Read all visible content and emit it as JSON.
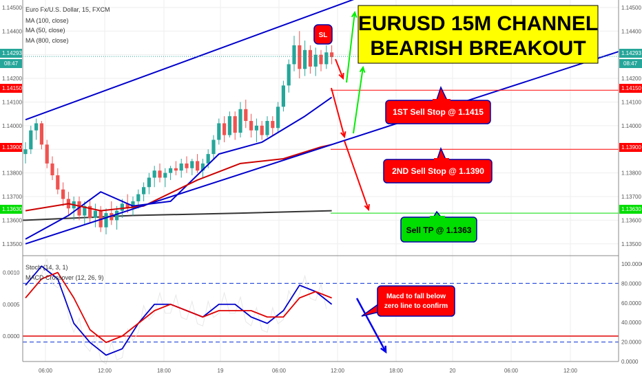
{
  "header": {
    "symbol": "Euro Fx/U.S. Dollar, 15, FXCM",
    "indicators": [
      "MA (100, close)",
      "MA (50, close)",
      "MA (800, close)"
    ]
  },
  "headline": {
    "line1": "EURUSD 15M CHANNEL",
    "line2": "BEARISH BREAKOUT"
  },
  "sl_label": "SL",
  "callouts": {
    "sell_stop_1": "1ST Sell Stop @ 1.1415",
    "sell_stop_2": "2ND Sell Stop @ 1.1390",
    "take_profit": "Sell TP @ 1.1363",
    "macd_note_1": "Macd to fall below",
    "macd_note_2": "zero line to confirm"
  },
  "price_boxes": {
    "current": "1.14293",
    "countdown": "08:47",
    "sell1": "1.14150",
    "sell2": "1.13900",
    "tp": "1.13630"
  },
  "lower_pane": {
    "stoch_label": "Stoch (14, 3, 1)",
    "macd_label": "MACD Crossover (12, 26, 9)"
  },
  "colors": {
    "bull": "#26a69a",
    "bear": "#ef5350",
    "channel": "#0000cc",
    "ma100": "#0000cc",
    "ma50": "#cc0000",
    "ma800": "#333333",
    "callout_red": "#ff0000",
    "callout_green": "#00cc00",
    "headline_bg": "#ffff00",
    "macd": "#0000cc",
    "signal": "#e00000"
  },
  "chart_data": [
    {
      "type": "candlestick",
      "ylim": [
        1.1345,
        1.1452
      ],
      "y_ticks": [
        "1.14500",
        "1.14400",
        "1.14300",
        "1.14200",
        "1.14100",
        "1.14000",
        "1.13900",
        "1.13800",
        "1.13700",
        "1.13600",
        "1.13500"
      ],
      "x_ticks": [
        "06:00",
        "12:00",
        "18:00",
        "19",
        "06:00",
        "12:00",
        "18:00",
        "20",
        "06:00",
        "12:00"
      ],
      "candles": [
        {
          "o": 1.1388,
          "h": 1.1393,
          "l": 1.1384,
          "c": 1.139
        },
        {
          "o": 1.139,
          "h": 1.14,
          "l": 1.1388,
          "c": 1.1398
        },
        {
          "o": 1.1398,
          "h": 1.1403,
          "l": 1.1394,
          "c": 1.1401
        },
        {
          "o": 1.1401,
          "h": 1.1402,
          "l": 1.139,
          "c": 1.1392
        },
        {
          "o": 1.1392,
          "h": 1.1394,
          "l": 1.1382,
          "c": 1.1384
        },
        {
          "o": 1.1384,
          "h": 1.1387,
          "l": 1.1377,
          "c": 1.1379
        },
        {
          "o": 1.1379,
          "h": 1.1382,
          "l": 1.1371,
          "c": 1.1373
        },
        {
          "o": 1.1373,
          "h": 1.1376,
          "l": 1.1366,
          "c": 1.1369
        },
        {
          "o": 1.1369,
          "h": 1.1372,
          "l": 1.1362,
          "c": 1.1365
        },
        {
          "o": 1.1365,
          "h": 1.137,
          "l": 1.136,
          "c": 1.1368
        },
        {
          "o": 1.1368,
          "h": 1.137,
          "l": 1.136,
          "c": 1.1362
        },
        {
          "o": 1.1362,
          "h": 1.1368,
          "l": 1.1358,
          "c": 1.1366
        },
        {
          "o": 1.1366,
          "h": 1.1369,
          "l": 1.1359,
          "c": 1.1361
        },
        {
          "o": 1.1361,
          "h": 1.1367,
          "l": 1.1357,
          "c": 1.1364
        },
        {
          "o": 1.1364,
          "h": 1.1366,
          "l": 1.1355,
          "c": 1.1357
        },
        {
          "o": 1.1357,
          "h": 1.1365,
          "l": 1.1354,
          "c": 1.1363
        },
        {
          "o": 1.1363,
          "h": 1.1368,
          "l": 1.1358,
          "c": 1.136
        },
        {
          "o": 1.136,
          "h": 1.1366,
          "l": 1.1356,
          "c": 1.1364
        },
        {
          "o": 1.1364,
          "h": 1.1369,
          "l": 1.1361,
          "c": 1.1367
        },
        {
          "o": 1.1367,
          "h": 1.1371,
          "l": 1.1363,
          "c": 1.1365
        },
        {
          "o": 1.1365,
          "h": 1.137,
          "l": 1.1362,
          "c": 1.1368
        },
        {
          "o": 1.1368,
          "h": 1.1373,
          "l": 1.1365,
          "c": 1.1371
        },
        {
          "o": 1.1371,
          "h": 1.1376,
          "l": 1.1368,
          "c": 1.1374
        },
        {
          "o": 1.1374,
          "h": 1.138,
          "l": 1.1371,
          "c": 1.1378
        },
        {
          "o": 1.1378,
          "h": 1.1383,
          "l": 1.1374,
          "c": 1.1381
        },
        {
          "o": 1.1381,
          "h": 1.1384,
          "l": 1.1376,
          "c": 1.1378
        },
        {
          "o": 1.1378,
          "h": 1.1382,
          "l": 1.1374,
          "c": 1.138
        },
        {
          "o": 1.138,
          "h": 1.1383,
          "l": 1.1377,
          "c": 1.1382
        },
        {
          "o": 1.1382,
          "h": 1.1385,
          "l": 1.1379,
          "c": 1.1381
        },
        {
          "o": 1.1381,
          "h": 1.1386,
          "l": 1.1378,
          "c": 1.1384
        },
        {
          "o": 1.1384,
          "h": 1.1387,
          "l": 1.138,
          "c": 1.1382
        },
        {
          "o": 1.1382,
          "h": 1.1386,
          "l": 1.1379,
          "c": 1.1385
        },
        {
          "o": 1.1385,
          "h": 1.1388,
          "l": 1.138,
          "c": 1.1381
        },
        {
          "o": 1.1381,
          "h": 1.1386,
          "l": 1.1378,
          "c": 1.1384
        },
        {
          "o": 1.1384,
          "h": 1.139,
          "l": 1.1382,
          "c": 1.1388
        },
        {
          "o": 1.1388,
          "h": 1.1396,
          "l": 1.1386,
          "c": 1.1394
        },
        {
          "o": 1.1394,
          "h": 1.1403,
          "l": 1.1392,
          "c": 1.1401
        },
        {
          "o": 1.1401,
          "h": 1.1404,
          "l": 1.1393,
          "c": 1.1396
        },
        {
          "o": 1.1396,
          "h": 1.1406,
          "l": 1.1395,
          "c": 1.1404
        },
        {
          "o": 1.1404,
          "h": 1.1406,
          "l": 1.1394,
          "c": 1.1397
        },
        {
          "o": 1.1397,
          "h": 1.141,
          "l": 1.1395,
          "c": 1.1407
        },
        {
          "o": 1.1407,
          "h": 1.1411,
          "l": 1.1399,
          "c": 1.1402
        },
        {
          "o": 1.1402,
          "h": 1.1405,
          "l": 1.1395,
          "c": 1.1398
        },
        {
          "o": 1.1398,
          "h": 1.1403,
          "l": 1.1393,
          "c": 1.14
        },
        {
          "o": 1.14,
          "h": 1.1402,
          "l": 1.1394,
          "c": 1.1396
        },
        {
          "o": 1.1396,
          "h": 1.1404,
          "l": 1.1395,
          "c": 1.1402
        },
        {
          "o": 1.1402,
          "h": 1.1404,
          "l": 1.1396,
          "c": 1.1399
        },
        {
          "o": 1.1399,
          "h": 1.141,
          "l": 1.1397,
          "c": 1.1408
        },
        {
          "o": 1.1408,
          "h": 1.1419,
          "l": 1.1406,
          "c": 1.1417
        },
        {
          "o": 1.1417,
          "h": 1.1428,
          "l": 1.1414,
          "c": 1.1426
        },
        {
          "o": 1.1426,
          "h": 1.1438,
          "l": 1.1423,
          "c": 1.1434
        },
        {
          "o": 1.1434,
          "h": 1.144,
          "l": 1.142,
          "c": 1.1424
        },
        {
          "o": 1.1424,
          "h": 1.1436,
          "l": 1.1421,
          "c": 1.1432
        },
        {
          "o": 1.1432,
          "h": 1.1434,
          "l": 1.1422,
          "c": 1.1425
        },
        {
          "o": 1.1425,
          "h": 1.1433,
          "l": 1.1421,
          "c": 1.143
        },
        {
          "o": 1.143,
          "h": 1.1432,
          "l": 1.1423,
          "c": 1.1426
        },
        {
          "o": 1.1426,
          "h": 1.1434,
          "l": 1.1424,
          "c": 1.1431
        },
        {
          "o": 1.1431,
          "h": 1.1434,
          "l": 1.1426,
          "c": 1.1429
        }
      ],
      "ma100": [
        [
          0,
          1.1352
        ],
        [
          8,
          1.1362
        ],
        [
          14,
          1.1372
        ],
        [
          20,
          1.1366
        ],
        [
          27,
          1.1368
        ],
        [
          36,
          1.1388
        ],
        [
          44,
          1.1393
        ],
        [
          52,
          1.1404
        ],
        [
          57,
          1.1412
        ]
      ],
      "ma50": [
        [
          0,
          1.1364
        ],
        [
          8,
          1.1367
        ],
        [
          14,
          1.1364
        ],
        [
          22,
          1.1366
        ],
        [
          32,
          1.1377
        ],
        [
          40,
          1.1384
        ],
        [
          48,
          1.1386
        ],
        [
          55,
          1.1391
        ],
        [
          57,
          1.1392
        ]
      ],
      "ma800": [
        [
          0,
          1.136
        ],
        [
          20,
          1.1362
        ],
        [
          40,
          1.1363
        ],
        [
          57,
          1.1364
        ]
      ],
      "channel_upper": [
        [
          0,
          1.14025
        ],
        [
          57,
          1.145
        ]
      ],
      "channel_lower": [
        [
          0,
          1.135
        ],
        [
          57,
          1.1392
        ]
      ],
      "levels": {
        "sell_stop_1": 1.1415,
        "sell_stop_2": 1.139,
        "take_profit": 1.1363,
        "current": 1.14293
      }
    },
    {
      "type": "line",
      "title": "MACD Crossover (12, 26, 9)",
      "ylim": [
        -0.0004,
        0.0012
      ],
      "y_ticks_left": [
        "0.0010",
        "0.0005",
        "0.0000"
      ],
      "y_ticks_right": [
        "100.0000",
        "80.0000",
        "60.0000",
        "40.0000",
        "20.0000",
        "0.0000"
      ],
      "series": [
        {
          "name": "MACD",
          "values": [
            [
              0,
              0.0008
            ],
            [
              3,
              0.0011
            ],
            [
              6,
              0.0009
            ],
            [
              9,
              0.0002
            ],
            [
              12,
              -0.0001
            ],
            [
              15,
              -0.0003
            ],
            [
              18,
              -0.0002
            ],
            [
              21,
              0.0002
            ],
            [
              24,
              0.0005
            ],
            [
              27,
              0.0005
            ],
            [
              30,
              0.0004
            ],
            [
              33,
              0.0003
            ],
            [
              36,
              0.0005
            ],
            [
              39,
              0.0005
            ],
            [
              42,
              0.0003
            ],
            [
              45,
              0.0002
            ],
            [
              48,
              0.0004
            ],
            [
              51,
              0.0008
            ],
            [
              54,
              0.0007
            ],
            [
              57,
              0.0005
            ]
          ]
        },
        {
          "name": "Signal",
          "values": [
            [
              0,
              0.0006
            ],
            [
              3,
              0.0009
            ],
            [
              6,
              0.001
            ],
            [
              9,
              0.0006
            ],
            [
              12,
              0.0001
            ],
            [
              15,
              -0.0001
            ],
            [
              18,
              0.0
            ],
            [
              21,
              0.0002
            ],
            [
              24,
              0.0004
            ],
            [
              27,
              0.0005
            ],
            [
              30,
              0.0004
            ],
            [
              33,
              0.0003
            ],
            [
              36,
              0.0004
            ],
            [
              39,
              0.0004
            ],
            [
              42,
              0.0004
            ],
            [
              45,
              0.0003
            ],
            [
              48,
              0.0003
            ],
            [
              51,
              0.0006
            ],
            [
              54,
              0.0007
            ],
            [
              57,
              0.0006
            ]
          ]
        }
      ],
      "zero_line": 0.0
    }
  ]
}
